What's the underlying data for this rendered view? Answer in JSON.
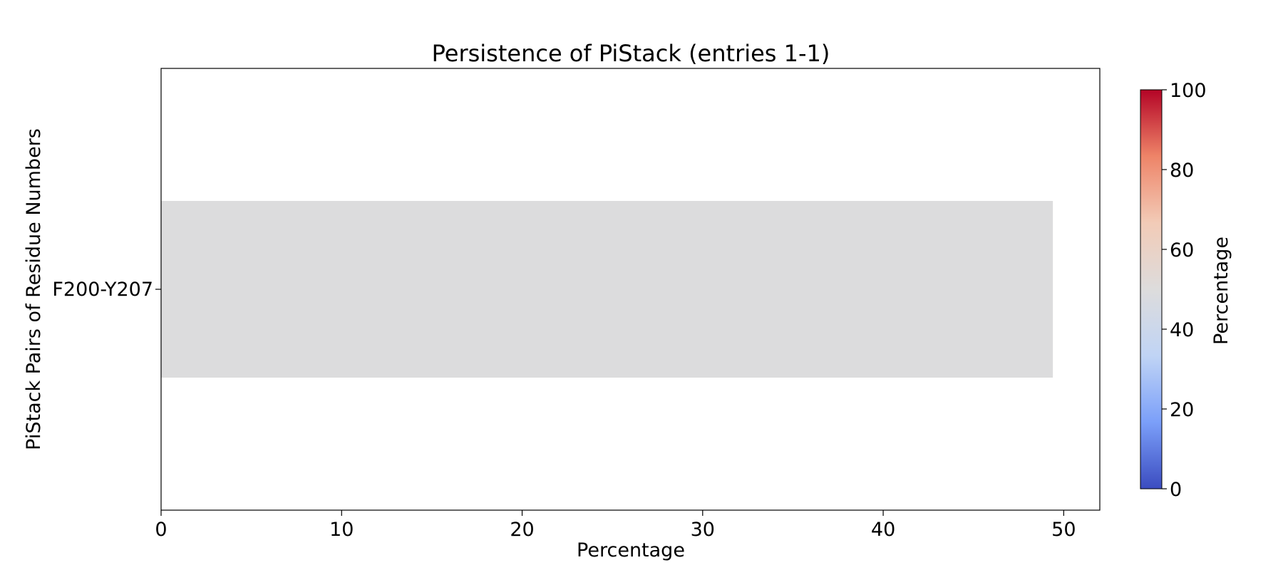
{
  "chart_data": {
    "type": "bar",
    "orientation": "horizontal",
    "title": "Persistence of PiStack (entries 1-1)",
    "xlabel": "Percentage",
    "ylabel": "PiStack Pairs of Residue Numbers",
    "categories": [
      "F200-Y207"
    ],
    "values": [
      49.4
    ],
    "xlim": [
      0,
      52
    ],
    "xticks": [
      0,
      10,
      20,
      30,
      40,
      50
    ],
    "grid": false,
    "colorbar": {
      "label": "Percentage",
      "range": [
        0,
        100
      ],
      "ticks": [
        0,
        20,
        40,
        60,
        80,
        100
      ],
      "colormap": "coolwarm",
      "colors": [
        "#3b4cc0",
        "#7b9ff9",
        "#c0d4f5",
        "#dddcdc",
        "#f2cbb7",
        "#ee8468",
        "#b40426"
      ]
    }
  }
}
